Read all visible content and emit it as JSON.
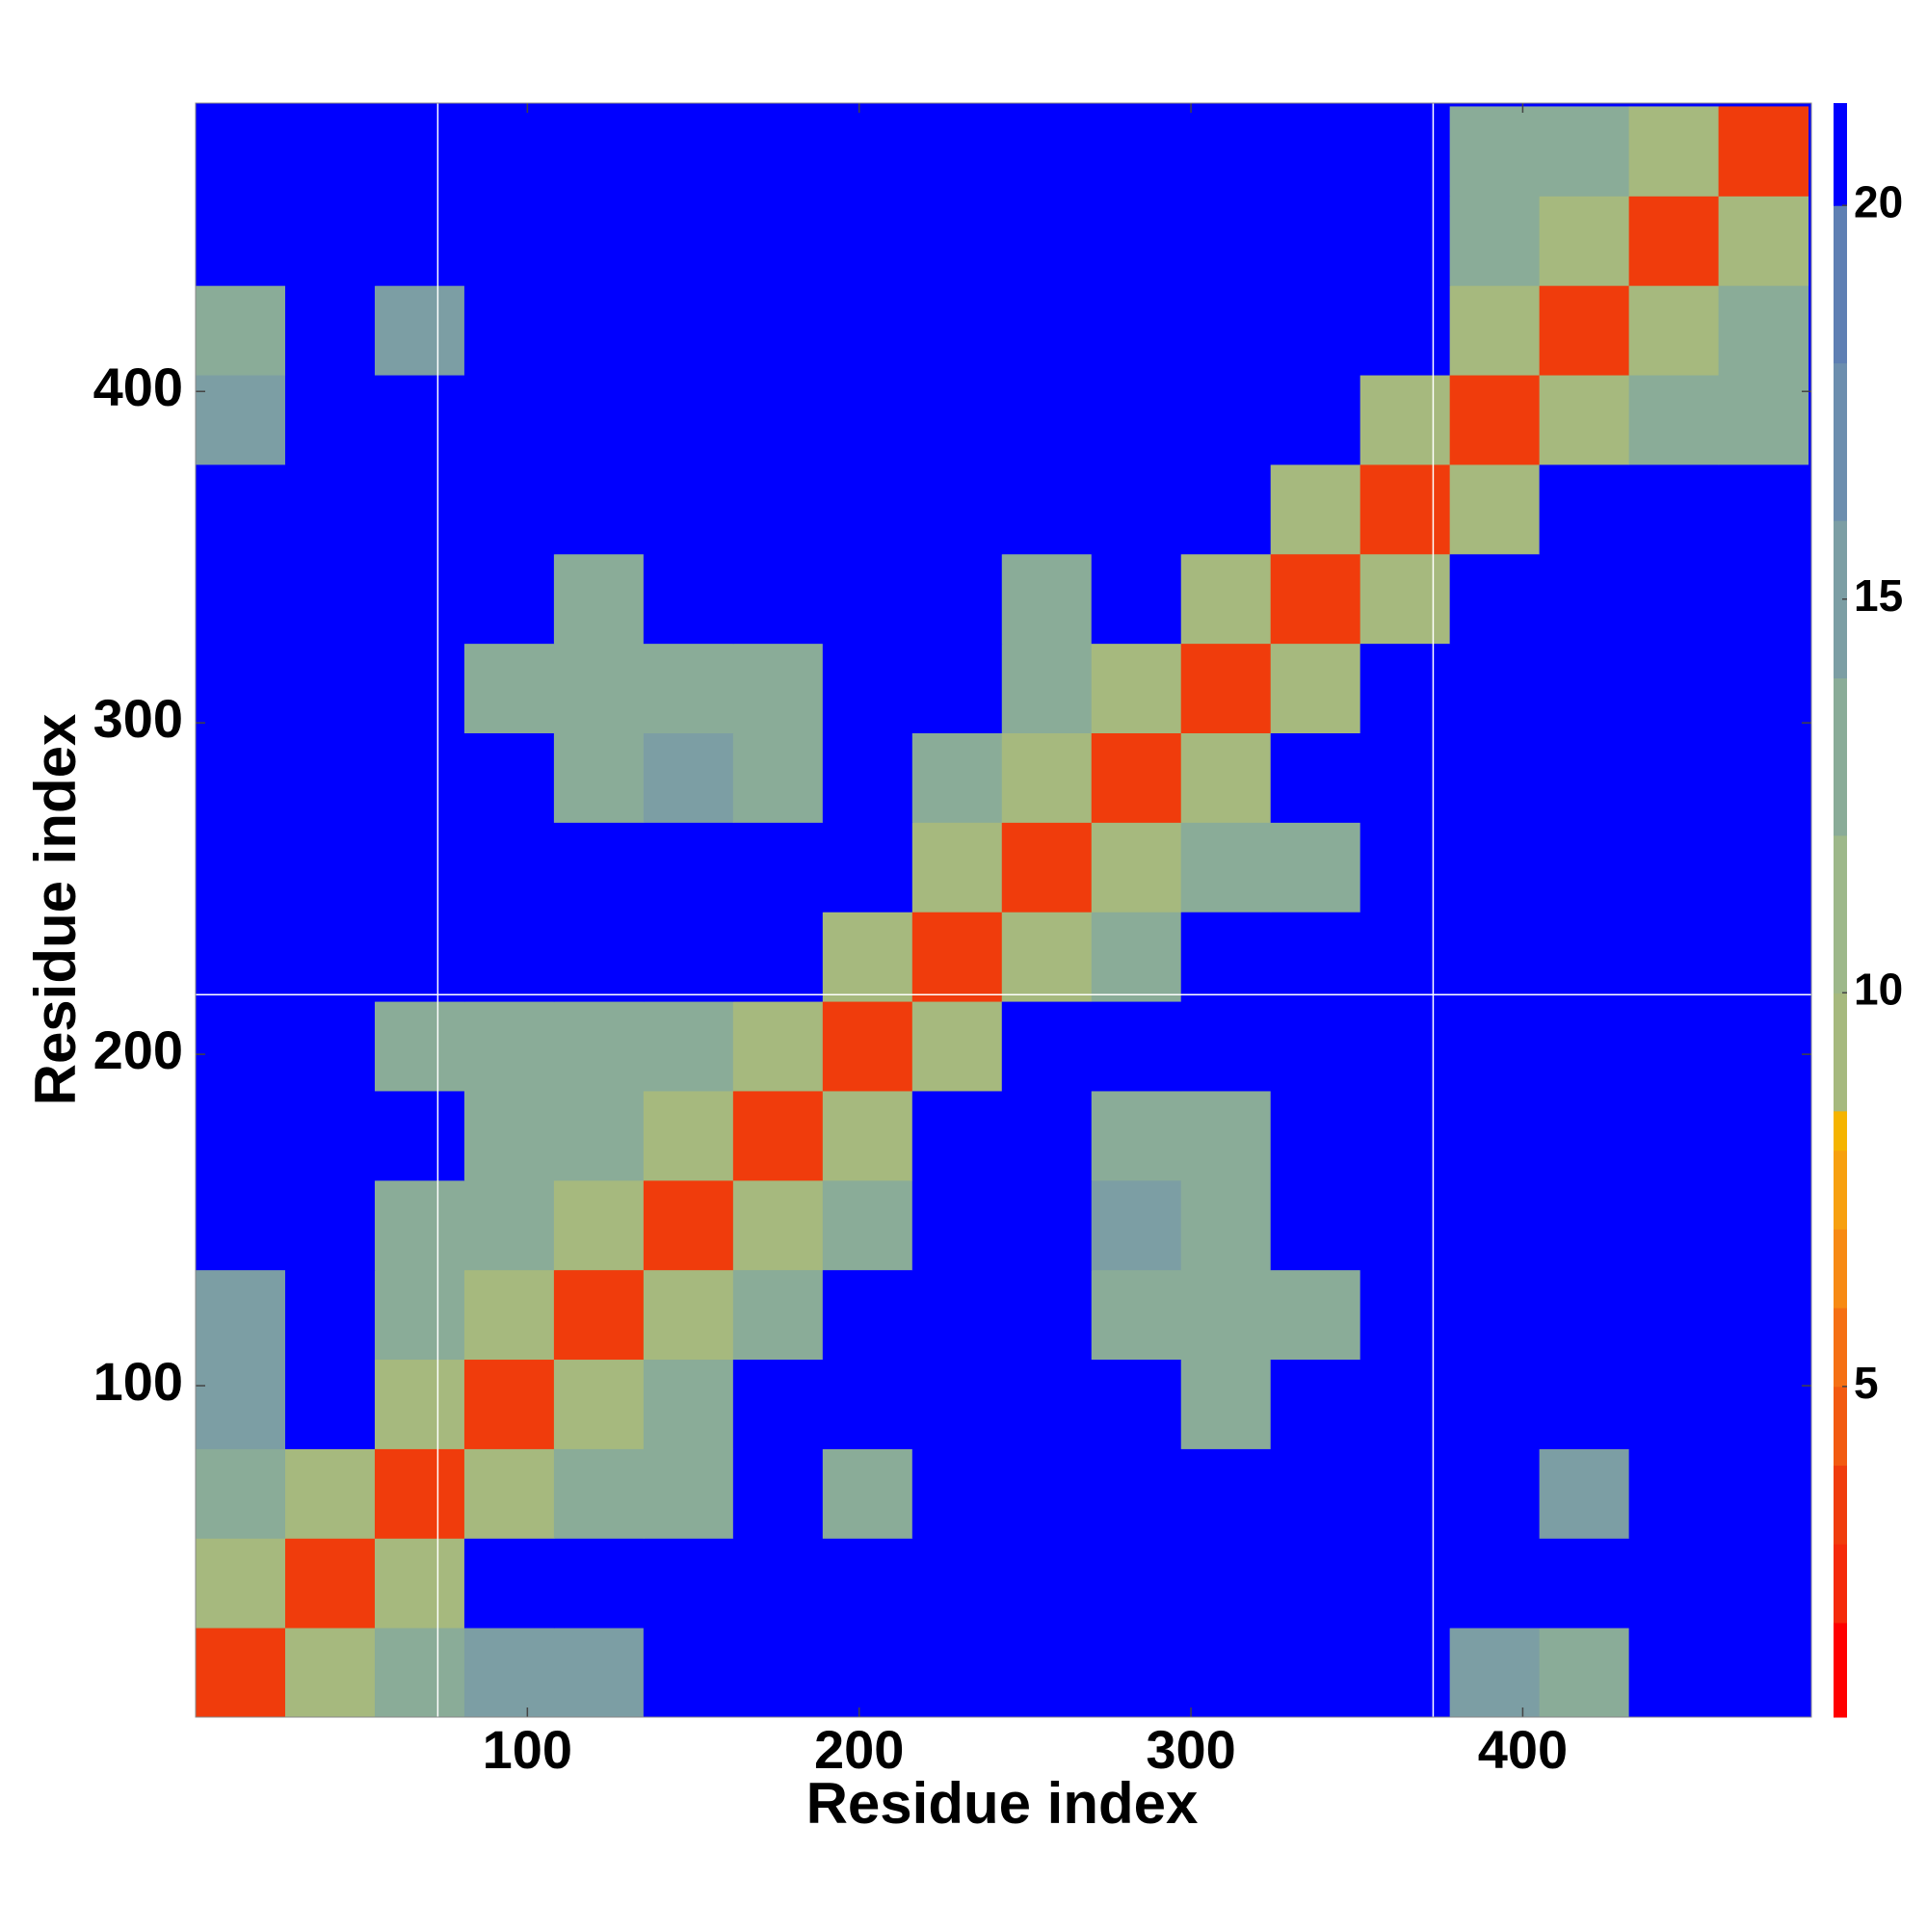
{
  "chart_data": {
    "type": "heatmap",
    "x_label": "Residue index",
    "y_label": "Residue index",
    "bins": [
      0,
      27,
      54,
      81,
      108,
      135,
      162,
      189,
      216,
      243,
      270,
      297,
      324,
      351,
      378,
      405,
      432,
      459,
      486
    ],
    "z": [
      [
        4,
        10,
        13,
        15,
        15,
        21,
        21,
        21,
        21,
        21,
        21,
        21,
        21,
        21,
        15,
        13,
        21,
        21
      ],
      [
        10,
        4,
        10,
        21,
        21,
        21,
        21,
        21,
        21,
        21,
        21,
        21,
        21,
        21,
        21,
        21,
        21,
        21
      ],
      [
        13,
        10,
        4,
        10,
        13,
        14,
        21,
        14,
        21,
        21,
        21,
        21,
        21,
        21,
        21,
        16,
        21,
        21
      ],
      [
        15,
        21,
        10,
        4,
        10,
        13,
        21,
        21,
        21,
        21,
        21,
        14,
        21,
        21,
        21,
        21,
        21,
        21
      ],
      [
        15,
        21,
        13,
        10,
        4,
        10,
        13,
        21,
        21,
        21,
        14,
        14,
        13,
        21,
        21,
        21,
        21,
        21
      ],
      [
        21,
        21,
        14,
        13,
        10,
        4,
        10,
        13,
        21,
        21,
        15,
        14,
        21,
        21,
        21,
        21,
        21,
        21
      ],
      [
        21,
        21,
        21,
        13,
        13,
        10,
        4,
        10,
        21,
        21,
        13,
        14,
        21,
        21,
        21,
        21,
        21,
        21
      ],
      [
        21,
        21,
        14,
        14,
        13,
        13,
        10,
        4,
        10,
        21,
        21,
        21,
        21,
        21,
        21,
        21,
        21,
        21
      ],
      [
        21,
        21,
        21,
        21,
        21,
        21,
        21,
        10,
        4,
        10,
        14,
        21,
        21,
        21,
        21,
        21,
        21,
        21
      ],
      [
        21,
        21,
        21,
        21,
        21,
        21,
        21,
        21,
        10,
        4,
        10,
        13,
        14,
        21,
        21,
        21,
        21,
        21
      ],
      [
        21,
        21,
        21,
        21,
        14,
        15,
        13,
        21,
        14,
        10,
        4,
        10,
        21,
        21,
        21,
        21,
        21,
        21
      ],
      [
        21,
        21,
        21,
        14,
        13,
        14,
        14,
        21,
        21,
        13,
        10,
        4,
        10,
        21,
        21,
        21,
        21,
        21
      ],
      [
        21,
        21,
        21,
        21,
        13,
        21,
        21,
        21,
        21,
        14,
        21,
        10,
        4,
        10,
        21,
        21,
        21,
        21
      ],
      [
        21,
        21,
        21,
        21,
        21,
        21,
        21,
        21,
        21,
        21,
        21,
        21,
        10,
        4,
        10,
        21,
        21,
        21
      ],
      [
        15,
        21,
        21,
        21,
        21,
        21,
        21,
        21,
        21,
        21,
        21,
        21,
        21,
        10,
        4,
        10,
        13,
        13
      ],
      [
        13,
        21,
        16,
        21,
        21,
        21,
        21,
        21,
        21,
        21,
        21,
        21,
        21,
        21,
        10,
        4,
        10,
        13
      ],
      [
        21,
        21,
        21,
        21,
        21,
        21,
        21,
        21,
        21,
        21,
        21,
        21,
        21,
        21,
        13,
        10,
        4,
        10
      ],
      [
        21,
        21,
        21,
        21,
        21,
        21,
        21,
        21,
        21,
        21,
        21,
        21,
        21,
        21,
        13,
        13,
        10,
        4
      ]
    ],
    "xlim": [
      0,
      487
    ],
    "ylim": [
      0,
      487
    ],
    "xticks": [
      100,
      200,
      300,
      400
    ],
    "yticks": [
      100,
      200,
      300,
      400
    ],
    "x_lines": [
      73,
      373
    ],
    "y_lines": [
      218
    ],
    "color_edges": [
      0.8,
      2,
      3,
      4,
      5,
      6,
      7,
      8,
      8.5,
      10,
      12,
      14,
      16,
      18,
      20,
      21.3
    ],
    "colors": [
      "#ff0000",
      "#f52a0a",
      "#f03c0c",
      "#f25a10",
      "#f57014",
      "#f78a14",
      "#f7a00f",
      "#f5b400",
      "#a6b97e",
      "#9db88a",
      "#8aac98",
      "#7c9ea4",
      "#6c8eae",
      "#5e7fb3",
      "#0000ff"
    ],
    "colorbar_ticks": [
      5,
      10,
      15,
      20
    ]
  }
}
